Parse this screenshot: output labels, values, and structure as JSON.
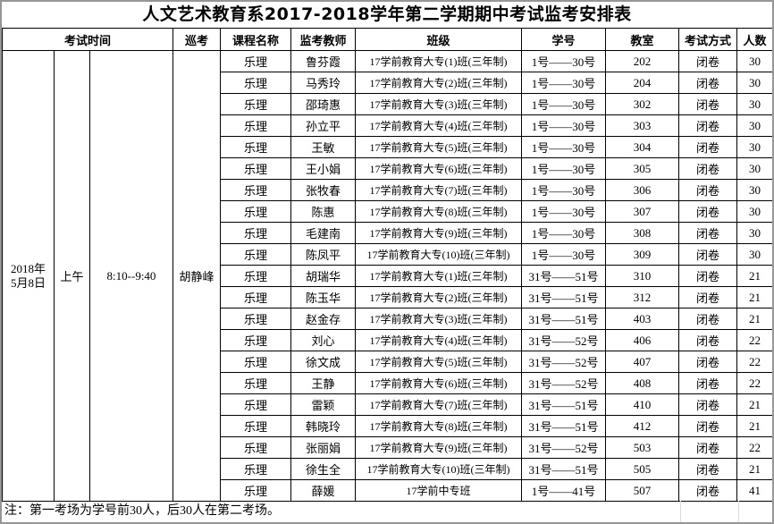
{
  "title": "人文艺术教育系2017-2018学年第二学期期中考试监考安排表",
  "table": {
    "headers": {
      "exam_time": "考试时间",
      "proctor": "巡考",
      "course": "课程名称",
      "invigilator": "监考教师",
      "class_name": "班级",
      "student_no": "学号",
      "room": "教室",
      "method": "考试方式",
      "count": "人数"
    },
    "session": {
      "date": "2018年\n5月8日",
      "period": "上午",
      "time": "8:10--9:40",
      "proctor_name": "胡静峰"
    },
    "rows": [
      {
        "course": "乐理",
        "teacher": "鲁芬霞",
        "class_name": "17学前教育大专(1)班(三年制)",
        "students": "1号——30号",
        "room": "202",
        "method": "闭卷",
        "count": "30"
      },
      {
        "course": "乐理",
        "teacher": "马秀玲",
        "class_name": "17学前教育大专(2)班(三年制)",
        "students": "1号——30号",
        "room": "204",
        "method": "闭卷",
        "count": "30"
      },
      {
        "course": "乐理",
        "teacher": "邵琦惠",
        "class_name": "17学前教育大专(3)班(三年制)",
        "students": "1号——30号",
        "room": "302",
        "method": "闭卷",
        "count": "30"
      },
      {
        "course": "乐理",
        "teacher": "孙立平",
        "class_name": "17学前教育大专(4)班(三年制)",
        "students": "1号——30号",
        "room": "303",
        "method": "闭卷",
        "count": "30"
      },
      {
        "course": "乐理",
        "teacher": "王敏",
        "class_name": "17学前教育大专(5)班(三年制)",
        "students": "1号——30号",
        "room": "304",
        "method": "闭卷",
        "count": "30"
      },
      {
        "course": "乐理",
        "teacher": "王小娟",
        "class_name": "17学前教育大专(6)班(三年制)",
        "students": "1号——30号",
        "room": "305",
        "method": "闭卷",
        "count": "30"
      },
      {
        "course": "乐理",
        "teacher": "张牧春",
        "class_name": "17学前教育大专(7)班(三年制)",
        "students": "1号——30号",
        "room": "306",
        "method": "闭卷",
        "count": "30"
      },
      {
        "course": "乐理",
        "teacher": "陈惠",
        "class_name": "17学前教育大专(8)班(三年制)",
        "students": "1号——30号",
        "room": "307",
        "method": "闭卷",
        "count": "30"
      },
      {
        "course": "乐理",
        "teacher": "毛建南",
        "class_name": "17学前教育大专(9)班(三年制)",
        "students": "1号——30号",
        "room": "308",
        "method": "闭卷",
        "count": "30"
      },
      {
        "course": "乐理",
        "teacher": "陈凤平",
        "class_name": "17学前教育大专(10)班(三年制)",
        "students": "1号——30号",
        "room": "309",
        "method": "闭卷",
        "count": "30"
      },
      {
        "course": "乐理",
        "teacher": "胡瑞华",
        "class_name": "17学前教育大专(1)班(三年制)",
        "students": "31号——51号",
        "room": "310",
        "method": "闭卷",
        "count": "21"
      },
      {
        "course": "乐理",
        "teacher": "陈玉华",
        "class_name": "17学前教育大专(2)班(三年制)",
        "students": "31号——51号",
        "room": "312",
        "method": "闭卷",
        "count": "21"
      },
      {
        "course": "乐理",
        "teacher": "赵金存",
        "class_name": "17学前教育大专(3)班(三年制)",
        "students": "31号——51号",
        "room": "403",
        "method": "闭卷",
        "count": "21"
      },
      {
        "course": "乐理",
        "teacher": "刘心",
        "class_name": "17学前教育大专(4)班(三年制)",
        "students": "31号——52号",
        "room": "406",
        "method": "闭卷",
        "count": "22"
      },
      {
        "course": "乐理",
        "teacher": "徐文成",
        "class_name": "17学前教育大专(5)班(三年制)",
        "students": "31号——52号",
        "room": "407",
        "method": "闭卷",
        "count": "22"
      },
      {
        "course": "乐理",
        "teacher": "王静",
        "class_name": "17学前教育大专(6)班(三年制)",
        "students": "31号——52号",
        "room": "408",
        "method": "闭卷",
        "count": "22"
      },
      {
        "course": "乐理",
        "teacher": "雷颖",
        "class_name": "17学前教育大专(7)班(三年制)",
        "students": "31号——51号",
        "room": "410",
        "method": "闭卷",
        "count": "21"
      },
      {
        "course": "乐理",
        "teacher": "韩晓玲",
        "class_name": "17学前教育大专(8)班(三年制)",
        "students": "31号——51号",
        "room": "412",
        "method": "闭卷",
        "count": "21"
      },
      {
        "course": "乐理",
        "teacher": "张丽娟",
        "class_name": "17学前教育大专(9)班(三年制)",
        "students": "31号——52号",
        "room": "503",
        "method": "闭卷",
        "count": "22"
      },
      {
        "course": "乐理",
        "teacher": "徐生全",
        "class_name": "17学前教育大专(10)班(三年制)",
        "students": "31号——51号",
        "room": "505",
        "method": "闭卷",
        "count": "21"
      },
      {
        "course": "乐理",
        "teacher": "薛媛",
        "class_name": "17学前中专班",
        "students": "1号——41号",
        "room": "507",
        "method": "闭卷",
        "count": "41"
      }
    ]
  },
  "note": "注：第一考场为学号前30人，后30人在第二考场。"
}
